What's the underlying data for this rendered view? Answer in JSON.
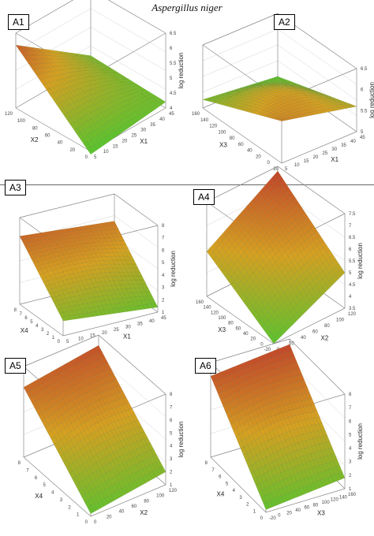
{
  "title": "Aspergillus niger",
  "colors": {
    "high": "#c0392b",
    "mid": "#d6a020",
    "low": "#5cc22e",
    "mesh": "#2e4a10"
  },
  "chart_data": [
    {
      "id": "A1",
      "type": "surface",
      "label": "A1",
      "xlabel": "X1",
      "ylabel": "X2",
      "zlabel": "log reduction",
      "xticks": [
        "5",
        "10",
        "15",
        "20",
        "25",
        "30",
        "35",
        "40",
        "45"
      ],
      "yticks": [
        "0",
        "20",
        "40",
        "60",
        "80",
        "100",
        "120"
      ],
      "zticks": [
        "4",
        "4.5",
        "5",
        "5.5",
        "6",
        "6.5"
      ],
      "xlim": [
        5,
        45
      ],
      "ylim": [
        0,
        120
      ],
      "zlim": [
        4,
        6.5
      ],
      "corners": {
        "x_low_y_low": 3.9,
        "x_high_y_low": 4.2,
        "x_low_y_high": 6.1,
        "x_high_y_high": 4.3
      }
    },
    {
      "id": "A2",
      "type": "surface",
      "label": "A2",
      "xlabel": "X1",
      "ylabel": "X3",
      "zlabel": "log reduction",
      "xticks": [
        "5",
        "10",
        "15",
        "20",
        "25",
        "30",
        "35",
        "40",
        "45"
      ],
      "yticks": [
        "-20",
        "0",
        "20",
        "40",
        "60",
        "80",
        "100",
        "120",
        "140",
        "160"
      ],
      "zticks": [
        "5",
        "5.5",
        "6",
        "6.5"
      ],
      "xlim": [
        5,
        45
      ],
      "ylim": [
        -20,
        160
      ],
      "zlim": [
        5,
        6.5
      ],
      "corners": {
        "x_low_y_low": 6.0,
        "x_high_y_low": 5.6,
        "x_low_y_high": 5.2,
        "x_high_y_high": 5.0
      }
    },
    {
      "id": "A3",
      "type": "surface",
      "label": "A3",
      "xlabel": "X1",
      "ylabel": "X4",
      "zlabel": "log reduction",
      "xticks": [
        "5",
        "10",
        "15",
        "20",
        "25",
        "30",
        "35",
        "40",
        "45"
      ],
      "yticks": [
        "0",
        "1",
        "2",
        "3",
        "4",
        "5",
        "6",
        "7",
        "8"
      ],
      "zticks": [
        "1",
        "2",
        "3",
        "4",
        "5",
        "6",
        "7",
        "8"
      ],
      "xlim": [
        5,
        45
      ],
      "ylim": [
        0,
        8
      ],
      "zlim": [
        1,
        8
      ],
      "corners": {
        "x_low_y_low": 2.2,
        "x_high_y_low": 1.4,
        "x_low_y_high": 6.5,
        "x_high_y_high": 5.8
      }
    },
    {
      "id": "A4",
      "type": "surface",
      "label": "A4",
      "xlabel": "X2",
      "ylabel": "X3",
      "zlabel": "log reduction",
      "xticks": [
        "0",
        "20",
        "40",
        "60",
        "80",
        "100",
        "120"
      ],
      "yticks": [
        "-20",
        "0",
        "20",
        "40",
        "60",
        "80",
        "100",
        "120",
        "140",
        "160"
      ],
      "zticks": [
        "3.5",
        "4",
        "4.5",
        "5",
        "5.5",
        "6",
        "6.5",
        "7",
        "7.5"
      ],
      "xlim": [
        0,
        120
      ],
      "ylim": [
        -20,
        160
      ],
      "zlim": [
        3.5,
        7.5
      ],
      "corners": {
        "x_low_y_low": 3.5,
        "x_high_y_low": 5.0,
        "x_low_y_high": 5.4,
        "x_high_y_high": 7.3
      }
    },
    {
      "id": "A5",
      "type": "surface",
      "label": "A5",
      "xlabel": "X2",
      "ylabel": "X4",
      "zlabel": "log reduction",
      "xticks": [
        "0",
        "20",
        "40",
        "60",
        "80",
        "100",
        "120"
      ],
      "yticks": [
        "0",
        "1",
        "2",
        "3",
        "4",
        "5",
        "6",
        "7",
        "8"
      ],
      "zticks": [
        "1",
        "2",
        "3",
        "4",
        "5",
        "6",
        "7",
        "8"
      ],
      "xlim": [
        0,
        120
      ],
      "ylim": [
        0,
        8
      ],
      "zlim": [
        1,
        8
      ],
      "corners": {
        "x_low_y_low": 1.2,
        "x_high_y_low": 2.0,
        "x_low_y_high": 6.4,
        "x_high_y_high": 7.2
      }
    },
    {
      "id": "A6",
      "type": "surface",
      "label": "A6",
      "xlabel": "X3",
      "ylabel": "X4",
      "zlabel": "log reduction",
      "xticks": [
        "-20",
        "0",
        "20",
        "40",
        "60",
        "80",
        "100",
        "120",
        "140",
        "160"
      ],
      "yticks": [
        "0",
        "1",
        "2",
        "3",
        "4",
        "5",
        "6",
        "7",
        "8"
      ],
      "zticks": [
        "1",
        "2",
        "3",
        "4",
        "5",
        "6",
        "7",
        "8"
      ],
      "xlim": [
        -20,
        160
      ],
      "ylim": [
        0,
        8
      ],
      "zlim": [
        1,
        8
      ],
      "corners": {
        "x_low_y_low": 1.2,
        "x_high_y_low": 1.8,
        "x_low_y_high": 7.0,
        "x_high_y_high": 7.6
      }
    }
  ]
}
